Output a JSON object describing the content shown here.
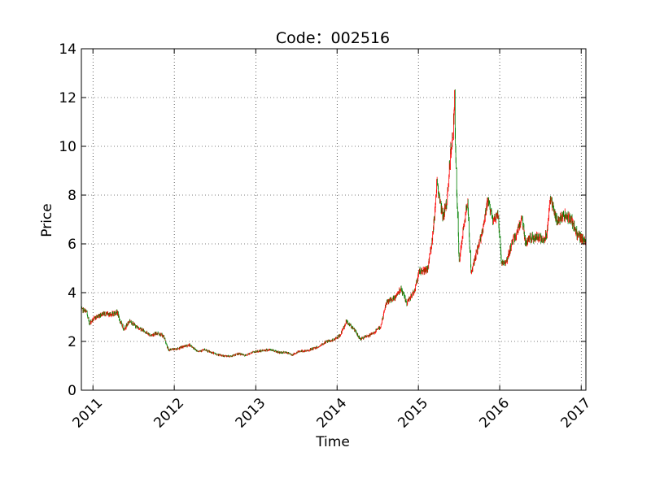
{
  "chart_data": {
    "type": "candlestick",
    "title": "Code：002516",
    "xlabel": "Time",
    "ylabel": "Price",
    "xlim": [
      "2010-11-10",
      "2017-01-22"
    ],
    "ylim": [
      0,
      14
    ],
    "yticks": [
      0,
      2,
      4,
      6,
      8,
      10,
      12,
      14
    ],
    "xticks": [
      "2011",
      "2012",
      "2013",
      "2014",
      "2015",
      "2016",
      "2017"
    ],
    "grid": true,
    "up_color": "#ff0000",
    "down_color": "#008000",
    "price_path": [
      [
        "2010-11-10",
        3.3
      ],
      [
        "2010-12-01",
        3.25
      ],
      [
        "2010-12-15",
        2.75
      ],
      [
        "2011-01-15",
        3.0
      ],
      [
        "2011-02-15",
        3.15
      ],
      [
        "2011-03-15",
        3.1
      ],
      [
        "2011-04-20",
        3.2
      ],
      [
        "2011-05-01",
        2.85
      ],
      [
        "2011-05-20",
        2.5
      ],
      [
        "2011-06-15",
        2.85
      ],
      [
        "2011-07-15",
        2.6
      ],
      [
        "2011-08-15",
        2.45
      ],
      [
        "2011-09-15",
        2.25
      ],
      [
        "2011-10-20",
        2.35
      ],
      [
        "2011-11-15",
        2.2
      ],
      [
        "2011-12-05",
        1.65
      ],
      [
        "2012-01-15",
        1.7
      ],
      [
        "2012-02-15",
        1.8
      ],
      [
        "2012-03-10",
        1.85
      ],
      [
        "2012-04-15",
        1.6
      ],
      [
        "2012-05-15",
        1.65
      ],
      [
        "2012-06-15",
        1.55
      ],
      [
        "2012-07-15",
        1.45
      ],
      [
        "2012-08-15",
        1.4
      ],
      [
        "2012-09-15",
        1.4
      ],
      [
        "2012-10-15",
        1.5
      ],
      [
        "2012-11-15",
        1.42
      ],
      [
        "2012-12-15",
        1.55
      ],
      [
        "2013-01-15",
        1.6
      ],
      [
        "2013-02-15",
        1.65
      ],
      [
        "2013-03-15",
        1.65
      ],
      [
        "2013-04-15",
        1.55
      ],
      [
        "2013-05-15",
        1.55
      ],
      [
        "2013-06-15",
        1.45
      ],
      [
        "2013-07-15",
        1.6
      ],
      [
        "2013-08-15",
        1.6
      ],
      [
        "2013-09-15",
        1.7
      ],
      [
        "2013-10-15",
        1.8
      ],
      [
        "2013-11-15",
        2.0
      ],
      [
        "2013-12-15",
        2.05
      ],
      [
        "2014-01-15",
        2.25
      ],
      [
        "2014-02-10",
        2.8
      ],
      [
        "2014-03-10",
        2.6
      ],
      [
        "2014-04-15",
        2.1
      ],
      [
        "2014-05-15",
        2.2
      ],
      [
        "2014-06-15",
        2.35
      ],
      [
        "2014-07-15",
        2.6
      ],
      [
        "2014-08-10",
        3.6
      ],
      [
        "2014-09-15",
        3.75
      ],
      [
        "2014-10-15",
        4.2
      ],
      [
        "2014-11-10",
        3.55
      ],
      [
        "2014-12-15",
        4.1
      ],
      [
        "2015-01-05",
        4.9
      ],
      [
        "2015-02-10",
        4.9
      ],
      [
        "2015-03-05",
        6.2
      ],
      [
        "2015-03-25",
        8.5
      ],
      [
        "2015-04-20",
        7.1
      ],
      [
        "2015-05-10",
        7.8
      ],
      [
        "2015-05-25",
        9.8
      ],
      [
        "2015-06-05",
        10.5
      ],
      [
        "2015-06-12",
        12.0
      ],
      [
        "2015-06-18",
        9.3
      ],
      [
        "2015-07-03",
        5.2
      ],
      [
        "2015-07-20",
        6.5
      ],
      [
        "2015-08-10",
        7.8
      ],
      [
        "2015-08-25",
        4.8
      ],
      [
        "2015-09-15",
        5.5
      ],
      [
        "2015-10-15",
        6.5
      ],
      [
        "2015-11-10",
        7.8
      ],
      [
        "2015-12-01",
        7.0
      ],
      [
        "2015-12-25",
        7.2
      ],
      [
        "2016-01-08",
        5.3
      ],
      [
        "2016-01-28",
        5.2
      ],
      [
        "2016-02-20",
        5.9
      ],
      [
        "2016-03-20",
        6.5
      ],
      [
        "2016-04-10",
        7.1
      ],
      [
        "2016-04-25",
        6.1
      ],
      [
        "2016-05-15",
        6.2
      ],
      [
        "2016-06-15",
        6.3
      ],
      [
        "2016-07-15",
        6.2
      ],
      [
        "2016-08-01",
        6.5
      ],
      [
        "2016-08-15",
        7.9
      ],
      [
        "2016-09-15",
        6.9
      ],
      [
        "2016-10-15",
        7.2
      ],
      [
        "2016-11-15",
        7.0
      ],
      [
        "2016-12-15",
        6.4
      ],
      [
        "2017-01-15",
        6.1
      ],
      [
        "2017-01-22",
        6.05
      ]
    ]
  }
}
